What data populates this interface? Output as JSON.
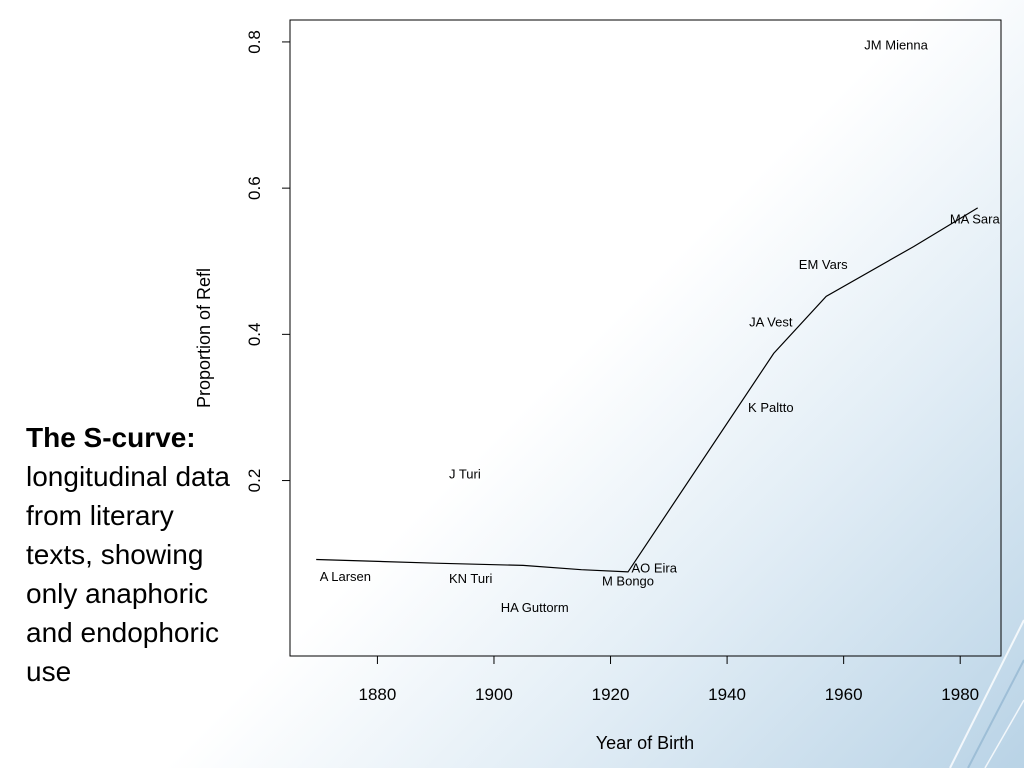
{
  "caption": {
    "lead": "The S-curve:",
    "body": "longitudinal data from literary texts, showing only anaphoric and endophoric use"
  },
  "colors": {
    "line": "#000000",
    "background_accent": "#b9d3e6"
  },
  "chart_data": {
    "type": "line",
    "title": "",
    "xlabel": "Year of Birth",
    "ylabel": "Proportion of Refl",
    "xlim": [
      1865,
      1987
    ],
    "ylim": [
      -0.04,
      0.83
    ],
    "xticks": [
      1880,
      1900,
      1920,
      1940,
      1960,
      1980
    ],
    "yticks": [
      0.2,
      0.4,
      0.6,
      0.8
    ],
    "xtick_labels": [
      "1880",
      "1900",
      "1920",
      "1940",
      "1960",
      "1980"
    ],
    "ytick_labels": [
      "0.2",
      "0.4",
      "0.6",
      "0.8"
    ],
    "grid": false,
    "legend": "none",
    "series": [
      {
        "x": [
          1869.5,
          1890,
          1905,
          1915,
          1923,
          1948,
          1957,
          1972,
          1983
        ],
        "y": [
          0.092,
          0.087,
          0.084,
          0.078,
          0.075,
          0.374,
          0.452,
          0.52,
          0.573
        ]
      }
    ],
    "annotations": [
      {
        "text": "A Larsen",
        "x": 1874.5,
        "y": 0.068
      },
      {
        "text": "KN Turi",
        "x": 1896,
        "y": 0.065
      },
      {
        "text": "HA Guttorm",
        "x": 1907,
        "y": 0.026
      },
      {
        "text": "M Bongo",
        "x": 1923,
        "y": 0.062
      },
      {
        "text": "AO Eira",
        "x": 1927.5,
        "y": 0.08
      },
      {
        "text": "J Turi",
        "x": 1895,
        "y": 0.208
      },
      {
        "text": "K Paltto",
        "x": 1947.5,
        "y": 0.299
      },
      {
        "text": "JA Vest",
        "x": 1947.5,
        "y": 0.416
      },
      {
        "text": "EM Vars",
        "x": 1956.5,
        "y": 0.495
      },
      {
        "text": "MA Sara",
        "x": 1982.5,
        "y": 0.557
      },
      {
        "text": "JM Mienna",
        "x": 1969,
        "y": 0.795
      }
    ]
  }
}
